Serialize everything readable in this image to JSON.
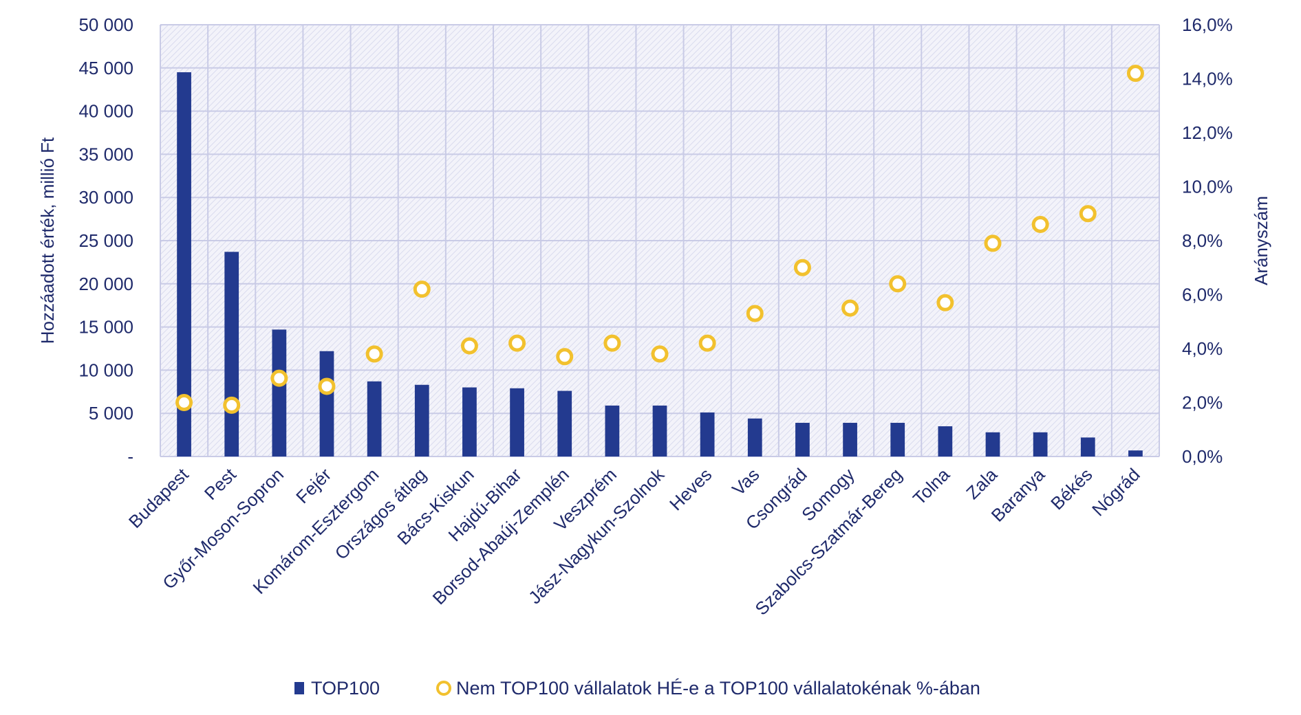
{
  "chart_data": {
    "type": "bar",
    "categories": [
      "Budapest",
      "Pest",
      "Győr-Moson-Sopron",
      "Fejér",
      "Komárom-Esztergom",
      "Országos átlag",
      "Bács-Kiskun",
      "Hajdú-Bihar",
      "Borsod-Abaúj-Zemplén",
      "Veszprém",
      "Jász-Nagykun-Szolnok",
      "Heves",
      "Vas",
      "Csongrád",
      "Somogy",
      "Szabolcs-Szatmár-Bereg",
      "Tolna",
      "Zala",
      "Baranya",
      "Békés",
      "Nógrád"
    ],
    "series": [
      {
        "name": "TOP100",
        "type": "bar",
        "axis": "left",
        "values": [
          44500,
          23700,
          14700,
          12200,
          8700,
          8300,
          8000,
          7900,
          7600,
          5900,
          5900,
          5100,
          4400,
          3900,
          3900,
          3900,
          3500,
          2800,
          2800,
          2200,
          700
        ]
      },
      {
        "name": "Nem TOP100 vállalatok HÉ-e a TOP100 vállalatokénak %-ában",
        "type": "scatter",
        "axis": "right",
        "values": [
          2.0,
          1.9,
          2.9,
          2.6,
          3.8,
          6.2,
          4.1,
          4.2,
          3.7,
          4.2,
          3.8,
          4.2,
          5.3,
          7.0,
          5.5,
          6.4,
          5.7,
          7.9,
          8.6,
          9.0,
          14.2
        ]
      }
    ],
    "y_left": {
      "label": "Hozzáadott érték, millió Ft",
      "min": 0,
      "max": 50000,
      "ticks": [
        "-",
        "5 000",
        "10 000",
        "15 000",
        "20 000",
        "25 000",
        "30 000",
        "35 000",
        "40 000",
        "45 000",
        "50 000"
      ]
    },
    "y_right": {
      "label": "Arányszám",
      "min": 0,
      "max": 16,
      "ticks": [
        "0,0%",
        "2,0%",
        "4,0%",
        "6,0%",
        "8,0%",
        "10,0%",
        "12,0%",
        "14,0%",
        "16,0%"
      ]
    },
    "legend": {
      "position": "bottom",
      "items": [
        "TOP100",
        "Nem TOP100 vállalatok HÉ-e a TOP100 vállalatokénak %-ában"
      ]
    },
    "grid": true,
    "colors": {
      "bar": "#233a8f",
      "marker": "#f2c12e",
      "grid": "#c9cbe6",
      "text": "#1f2a6b",
      "plot_bg": "#eeeff8"
    }
  }
}
